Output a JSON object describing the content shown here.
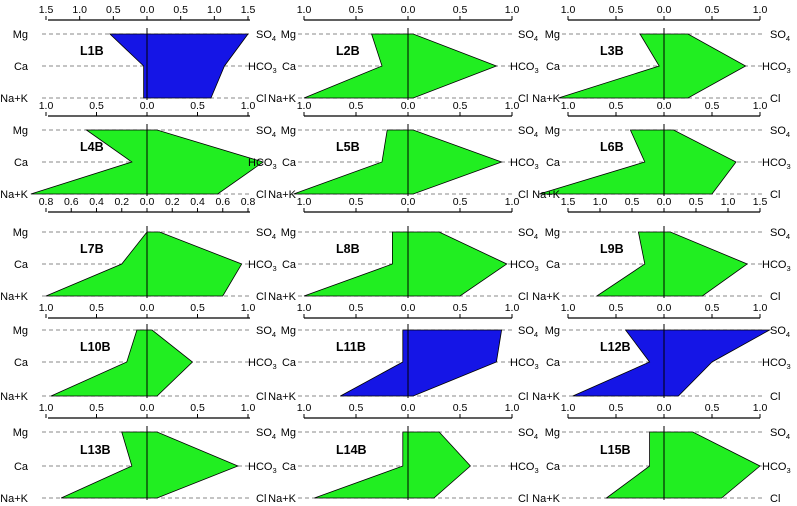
{
  "figure": {
    "colors": {
      "fill_green": "#21ee21",
      "fill_blue": "#1515e6",
      "outline": "#000000",
      "axis": "#000000",
      "guide": "#8a8a8a",
      "center": "#000000"
    }
  },
  "chart_data": [
    {
      "type": "area",
      "title": "L1B",
      "fill": "blue",
      "ticks": [
        "1.5",
        "1.0",
        "0.5",
        "0.0",
        "0.5",
        "1.0",
        "1.5"
      ],
      "xlim": [
        -1.5,
        1.5
      ],
      "cation_labels": [
        "Mg",
        "Ca",
        "Na+K"
      ],
      "anion_labels": [
        "SO",
        "HCO",
        "Cl"
      ],
      "values": {
        "Mg": 0.55,
        "Ca": 0.05,
        "NaK": 0.05,
        "SO4": 1.5,
        "HCO3": 1.15,
        "Cl": 0.95
      }
    },
    {
      "type": "area",
      "title": "L2B",
      "fill": "green",
      "ticks": [
        "1.0",
        "0.5",
        "0.0",
        "0.5",
        "1.0"
      ],
      "xlim": [
        -1.0,
        1.0
      ],
      "cation_labels": [
        "Mg",
        "Ca",
        "Na+K"
      ],
      "anion_labels": [
        "SO",
        "HCO",
        "Cl"
      ],
      "values": {
        "Mg": 0.35,
        "Ca": 0.25,
        "NaK": 1.0,
        "SO4": 0.05,
        "HCO3": 0.85,
        "Cl": 0.05
      }
    },
    {
      "type": "area",
      "title": "L3B",
      "fill": "green",
      "ticks": [
        "1.0",
        "0.5",
        "0.0",
        "0.5",
        "1.0"
      ],
      "xlim": [
        -1.0,
        1.0
      ],
      "cation_labels": [
        "Mg",
        "Ca",
        "Na+K"
      ],
      "anion_labels": [
        "SO",
        "HCO",
        "Cl"
      ],
      "values": {
        "Mg": 0.25,
        "Ca": 0.05,
        "NaK": 1.1,
        "SO4": 0.25,
        "HCO3": 0.85,
        "Cl": 0.25
      }
    },
    {
      "type": "area",
      "title": "L4B",
      "fill": "green",
      "ticks": [
        "1.0",
        "0.5",
        "0.0",
        "0.5",
        "1.0"
      ],
      "xlim": [
        -1.0,
        1.0
      ],
      "cation_labels": [
        "Mg",
        "Ca",
        "Na+K"
      ],
      "anion_labels": [
        "SO",
        "HCO",
        "Cl"
      ],
      "values": {
        "Mg": 0.6,
        "Ca": 0.15,
        "NaK": 1.15,
        "SO4": 0.1,
        "HCO3": 1.15,
        "Cl": 0.7
      }
    },
    {
      "type": "area",
      "title": "L5B",
      "fill": "green",
      "ticks": [
        "1.0",
        "0.5",
        "0.0",
        "0.5",
        "1.0"
      ],
      "xlim": [
        -1.0,
        1.0
      ],
      "cation_labels": [
        "Mg",
        "Ca",
        "Na+K"
      ],
      "anion_labels": [
        "SO",
        "HCO",
        "Cl"
      ],
      "values": {
        "Mg": 0.2,
        "Ca": 0.25,
        "NaK": 1.1,
        "SO4": 0.05,
        "HCO3": 0.9,
        "Cl": 0.05
      }
    },
    {
      "type": "area",
      "title": "L6B",
      "fill": "green",
      "ticks": [
        "1.0",
        "0.5",
        "0.0",
        "0.5",
        "1.0"
      ],
      "xlim": [
        -1.0,
        1.0
      ],
      "cation_labels": [
        "Mg",
        "Ca",
        "Na+K"
      ],
      "anion_labels": [
        "SO",
        "HCO",
        "Cl"
      ],
      "values": {
        "Mg": 0.35,
        "Ca": 0.2,
        "NaK": 1.3,
        "SO4": 0.1,
        "HCO3": 0.75,
        "Cl": 0.5
      }
    },
    {
      "type": "area",
      "title": "L7B",
      "fill": "green",
      "ticks": [
        "0.8",
        "0.6",
        "0.4",
        "0.2",
        "0.0",
        "0.2",
        "0.4",
        "0.6",
        "0.8"
      ],
      "xlim": [
        -0.8,
        0.8
      ],
      "cation_labels": [
        "Mg",
        "Ca",
        "Na+K"
      ],
      "anion_labels": [
        "SO",
        "HCO",
        "Cl"
      ],
      "values": {
        "Mg": 0.0,
        "Ca": 0.2,
        "NaK": 0.8,
        "SO4": 0.1,
        "HCO3": 0.75,
        "Cl": 0.6
      }
    },
    {
      "type": "area",
      "title": "L8B",
      "fill": "green",
      "ticks": [
        "1.0",
        "0.5",
        "0.0",
        "0.5",
        "1.0"
      ],
      "xlim": [
        -1.0,
        1.0
      ],
      "cation_labels": [
        "Mg",
        "Ca",
        "Na+K"
      ],
      "anion_labels": [
        "SO",
        "HCO",
        "Cl"
      ],
      "values": {
        "Mg": 0.15,
        "Ca": 0.15,
        "NaK": 1.0,
        "SO4": 0.3,
        "HCO3": 0.95,
        "Cl": 0.5
      }
    },
    {
      "type": "area",
      "title": "L9B",
      "fill": "green",
      "ticks": [
        "1.5",
        "1.0",
        "0.5",
        "0.0",
        "0.5",
        "1.0",
        "1.5"
      ],
      "xlim": [
        -1.5,
        1.5
      ],
      "cation_labels": [
        "Mg",
        "Ca",
        "Na+K"
      ],
      "anion_labels": [
        "SO",
        "HCO",
        "Cl"
      ],
      "values": {
        "Mg": 0.4,
        "Ca": 0.3,
        "NaK": 1.05,
        "SO4": 0.1,
        "HCO3": 1.3,
        "Cl": 0.6
      }
    },
    {
      "type": "area",
      "title": "L10B",
      "fill": "green",
      "ticks": [
        "1.0",
        "0.5",
        "0.0",
        "0.5",
        "1.0"
      ],
      "xlim": [
        -1.0,
        1.0
      ],
      "cation_labels": [
        "Mg",
        "Ca",
        "Na+K"
      ],
      "anion_labels": [
        "SO",
        "HCO",
        "Cl"
      ],
      "values": {
        "Mg": 0.1,
        "Ca": 0.2,
        "NaK": 0.95,
        "SO4": 0.05,
        "HCO3": 0.45,
        "Cl": 0.1
      }
    },
    {
      "type": "area",
      "title": "L11B",
      "fill": "blue",
      "ticks": [
        "1.0",
        "0.5",
        "0.0",
        "0.5",
        "1.0"
      ],
      "xlim": [
        -1.0,
        1.0
      ],
      "cation_labels": [
        "Mg",
        "Ca",
        "Na+K"
      ],
      "anion_labels": [
        "SO",
        "HCO",
        "Cl"
      ],
      "values": {
        "Mg": 0.05,
        "Ca": 0.05,
        "NaK": 0.65,
        "SO4": 0.9,
        "HCO3": 0.85,
        "Cl": 0.05
      }
    },
    {
      "type": "area",
      "title": "L12B",
      "fill": "blue",
      "ticks": [
        "1.0",
        "0.5",
        "0.0",
        "0.5",
        "1.0"
      ],
      "xlim": [
        -1.0,
        1.0
      ],
      "cation_labels": [
        "Mg",
        "Ca",
        "Na+K"
      ],
      "anion_labels": [
        "SO",
        "HCO",
        "Cl"
      ],
      "values": {
        "Mg": 0.4,
        "Ca": 0.15,
        "NaK": 0.95,
        "SO4": 1.1,
        "HCO3": 0.5,
        "Cl": 0.15
      }
    },
    {
      "type": "area",
      "title": "L13B",
      "fill": "green",
      "ticks": [
        "1.0",
        "0.5",
        "0.0",
        "0.5",
        "1.0"
      ],
      "xlim": [
        -1.0,
        1.0
      ],
      "cation_labels": [
        "Mg",
        "Ca",
        "Na+K"
      ],
      "anion_labels": [
        "SO",
        "HCO",
        "Cl"
      ],
      "values": {
        "Mg": 0.25,
        "Ca": 0.15,
        "NaK": 0.85,
        "SO4": 0.1,
        "HCO3": 0.9,
        "Cl": 0.1
      }
    },
    {
      "type": "area",
      "title": "L14B",
      "fill": "green",
      "ticks": [
        "1.0",
        "0.5",
        "0.0",
        "0.5",
        "1.0"
      ],
      "xlim": [
        -1.0,
        1.0
      ],
      "cation_labels": [
        "Mg",
        "Ca",
        "Na+K"
      ],
      "anion_labels": [
        "SO",
        "HCO",
        "Cl"
      ],
      "values": {
        "Mg": 0.05,
        "Ca": 0.05,
        "NaK": 0.9,
        "SO4": 0.3,
        "HCO3": 0.6,
        "Cl": 0.25
      }
    },
    {
      "type": "area",
      "title": "L15B",
      "fill": "green",
      "ticks": [
        "1.0",
        "0.5",
        "0.0",
        "0.5",
        "1.0"
      ],
      "xlim": [
        -1.0,
        1.0
      ],
      "cation_labels": [
        "Mg",
        "Ca",
        "Na+K"
      ],
      "anion_labels": [
        "SO",
        "HCO",
        "Cl"
      ],
      "values": {
        "Mg": 0.15,
        "Ca": 0.15,
        "NaK": 0.6,
        "SO4": 0.3,
        "HCO3": 1.0,
        "Cl": 0.6
      }
    }
  ]
}
